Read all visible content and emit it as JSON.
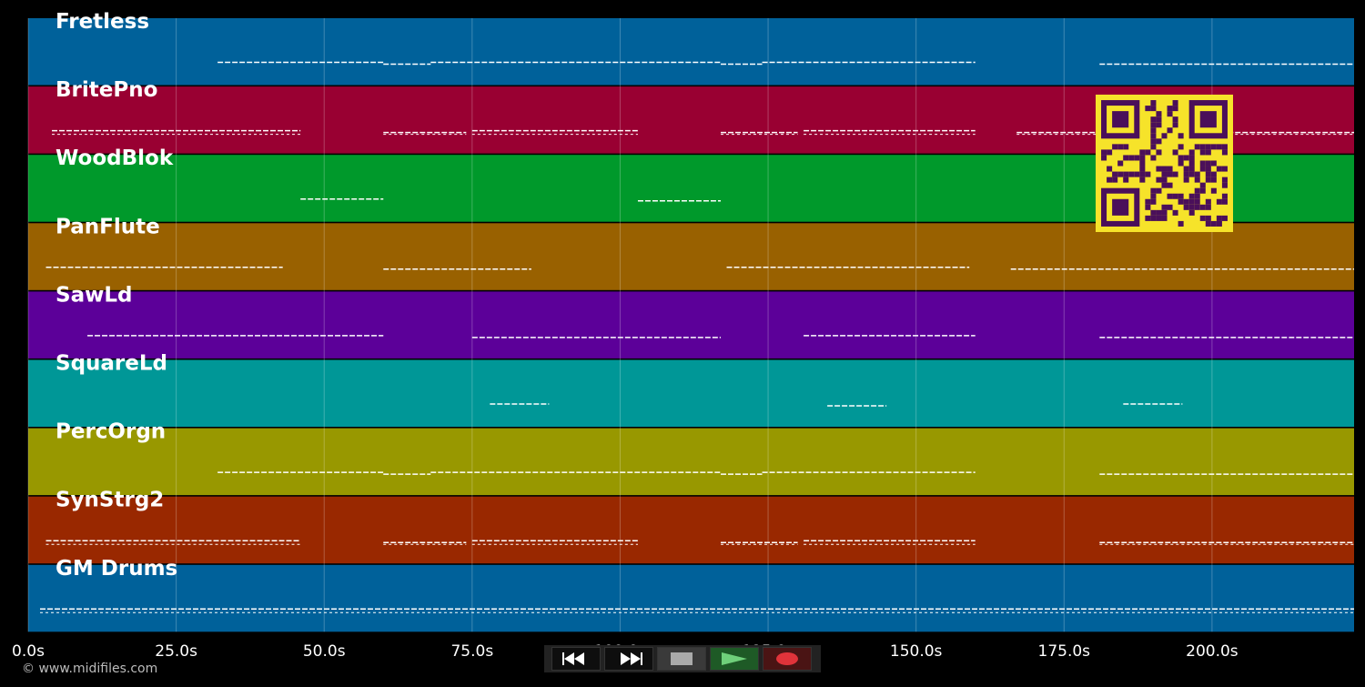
{
  "timeline": {
    "tick_labels": [
      "0.0s",
      "25.0s",
      "50.0s",
      "75.0s",
      "100.0s",
      "125.0s",
      "150.0s",
      "175.0s",
      "200.0s"
    ],
    "max_seconds": 224
  },
  "tracks": [
    {
      "name": "Fretless",
      "color": "#00619a"
    },
    {
      "name": "BritePno",
      "color": "#990032"
    },
    {
      "name": "WoodBlok",
      "color": "#00992b"
    },
    {
      "name": "PanFlute",
      "color": "#996100"
    },
    {
      "name": "SawLd",
      "color": "#5c0099"
    },
    {
      "name": "SquareLd",
      "color": "#009797"
    },
    {
      "name": "PercOrgn",
      "color": "#989800"
    },
    {
      "name": "SynStrg2",
      "color": "#992800"
    },
    {
      "name": "GM Drums",
      "color": "#00619a"
    }
  ],
  "copyright": "© www.midifiles.com",
  "transport": {
    "rewind_icon": "rewind-icon",
    "forward_icon": "fast-forward-icon",
    "stop_icon": "stop-icon",
    "play_icon": "play-icon",
    "record_icon": "record-icon"
  },
  "qr_code": {
    "fg": "#f6e32a",
    "bg": "#4a0f5a"
  }
}
